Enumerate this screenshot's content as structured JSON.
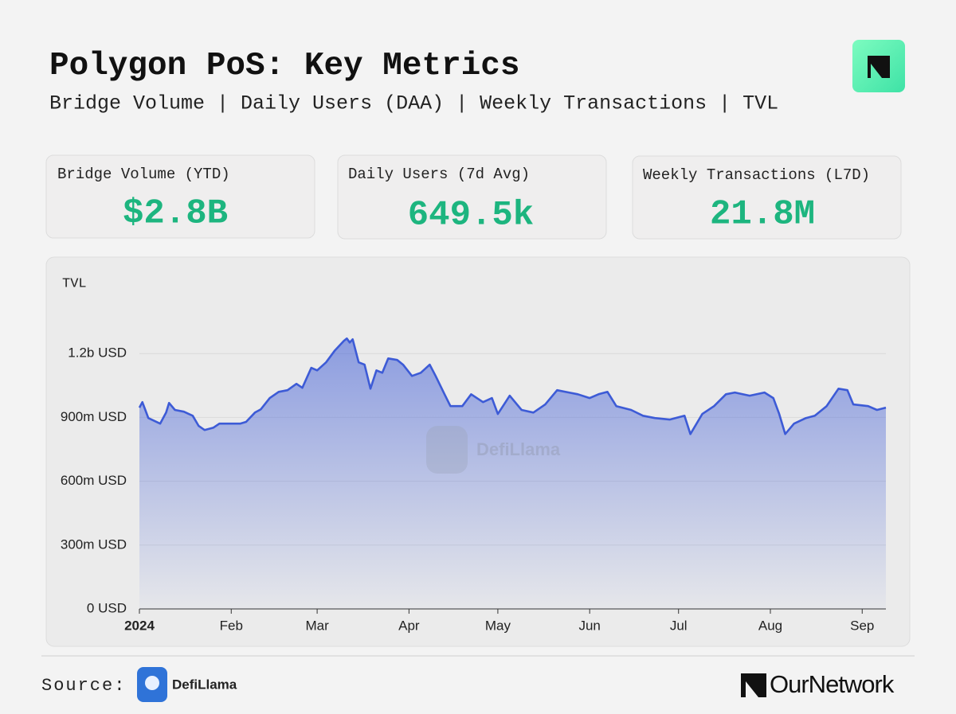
{
  "header": {
    "title": "Polygon PoS: Key Metrics",
    "subtitle": "Bridge Volume | Daily Users (DAA) | Weekly Transactions | TVL"
  },
  "cards": [
    {
      "label": "Bridge Volume (YTD)",
      "value": "$2.8B"
    },
    {
      "label": "Daily Users (7d Avg)",
      "value": "649.5k"
    },
    {
      "label": "Weekly Transactions (L7D)",
      "value": "21.8M"
    }
  ],
  "chart_data": {
    "type": "line",
    "title": "TVL",
    "watermark": "DefiLlama",
    "color": "#3d5bd6",
    "grid": true,
    "x": [
      0,
      1,
      2,
      3,
      7,
      9,
      10,
      12,
      15,
      18,
      20,
      22,
      25,
      27,
      30,
      34,
      36,
      39,
      41,
      44,
      47,
      50,
      53,
      55,
      58,
      60,
      63,
      66,
      69,
      70,
      71,
      72,
      74,
      76,
      78,
      80,
      82,
      84,
      87,
      89,
      92,
      95,
      98,
      100,
      103,
      105,
      109,
      112,
      116,
      119,
      121,
      125,
      129,
      133,
      137,
      141,
      145,
      148,
      152,
      155,
      158,
      161,
      166,
      170,
      174,
      179,
      184,
      186,
      190,
      194,
      198,
      201,
      206,
      211,
      214,
      216,
      218,
      221,
      225,
      228,
      232,
      236,
      239,
      241,
      246,
      249,
      252
    ],
    "values": [
      946000000,
      972000000,
      935000000,
      897000000,
      871000000,
      923000000,
      968000000,
      935000000,
      927000000,
      908000000,
      860000000,
      841000000,
      852000000,
      871000000,
      871000000,
      871000000,
      879000000,
      923000000,
      938000000,
      991000000,
      1020000000,
      1028000000,
      1058000000,
      1039000000,
      1133000000,
      1121000000,
      1159000000,
      1215000000,
      1260000000,
      1271000000,
      1252000000,
      1267000000,
      1159000000,
      1148000000,
      1035000000,
      1121000000,
      1110000000,
      1177000000,
      1170000000,
      1148000000,
      1095000000,
      1110000000,
      1148000000,
      1095000000,
      1009000000,
      953000000,
      953000000,
      1009000000,
      972000000,
      991000000,
      916000000,
      1002000000,
      935000000,
      923000000,
      961000000,
      1028000000,
      1017000000,
      1009000000,
      991000000,
      1009000000,
      1020000000,
      953000000,
      935000000,
      908000000,
      897000000,
      890000000,
      908000000,
      822000000,
      916000000,
      953000000,
      1009000000,
      1017000000,
      1002000000,
      1017000000,
      991000000,
      916000000,
      822000000,
      871000000,
      897000000,
      908000000,
      953000000,
      1035000000,
      1028000000,
      961000000,
      953000000,
      935000000,
      946000000
    ],
    "xlim": [
      0,
      252
    ],
    "ylim": [
      0,
      1500000000
    ],
    "xticks": [
      {
        "value": 0,
        "label": "2024"
      },
      {
        "value": 31,
        "label": "Feb"
      },
      {
        "value": 60,
        "label": "Mar"
      },
      {
        "value": 91,
        "label": "Apr"
      },
      {
        "value": 121,
        "label": "May"
      },
      {
        "value": 152,
        "label": "Jun"
      },
      {
        "value": 182,
        "label": "Jul"
      },
      {
        "value": 213,
        "label": "Aug"
      },
      {
        "value": 244,
        "label": "Sep"
      }
    ],
    "yticks": [
      {
        "value": 0,
        "label": "0 USD"
      },
      {
        "value": 300000000,
        "label": "300m USD"
      },
      {
        "value": 600000000,
        "label": "600m USD"
      },
      {
        "value": 900000000,
        "label": "900m USD"
      },
      {
        "value": 1200000000,
        "label": "1.2b USD"
      }
    ]
  },
  "footer": {
    "source_label": "Source:",
    "source_name": "DefiLlama",
    "brand": "OurNetwork"
  }
}
